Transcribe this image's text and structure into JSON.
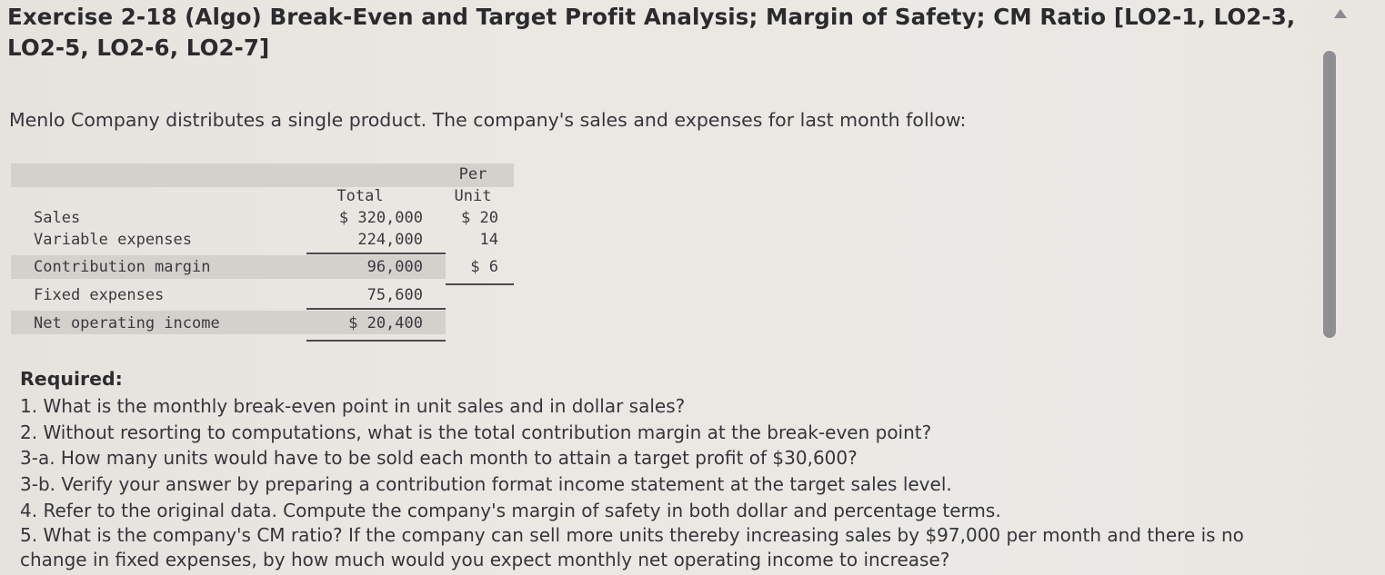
{
  "title": "Exercise 2-18 (Algo) Break-Even and Target Profit Analysis; Margin of Safety; CM Ratio [LO2-1, LO2-3, LO2-5, LO2-6, LO2-7]",
  "intro": "Menlo Company distributes a single product. The company's sales and expenses for last month follow:",
  "table": {
    "headers": {
      "total": "Total",
      "per_unit_1": "Per",
      "per_unit_2": "Unit"
    },
    "rows": [
      {
        "label": "Sales",
        "total": "$ 320,000",
        "per_unit": "$ 20"
      },
      {
        "label": "Variable expenses",
        "total": "224,000",
        "per_unit": "14"
      },
      {
        "label": "Contribution margin",
        "total": "96,000",
        "per_unit": "$ 6"
      },
      {
        "label": "Fixed expenses",
        "total": "75,600",
        "per_unit": ""
      },
      {
        "label": "Net operating income",
        "total": "$ 20,400",
        "per_unit": ""
      }
    ]
  },
  "required_label": "Required:",
  "questions": [
    "1. What is the monthly break-even point in unit sales and in dollar sales?",
    "2. Without resorting to computations, what is the total contribution margin at the break-even point?",
    "3-a. How many units would have to be sold each month to attain a target profit of $30,600?",
    "3-b. Verify your answer by preparing a contribution format income statement at the target sales level.",
    "4. Refer to the original data. Compute the company's margin of safety in both dollar and percentage terms.",
    "5. What is the company's CM ratio? If the company can sell more units thereby increasing sales by $97,000 per month and there is no change in fixed expenses, by how much would you expect monthly net operating income to increase?"
  ]
}
